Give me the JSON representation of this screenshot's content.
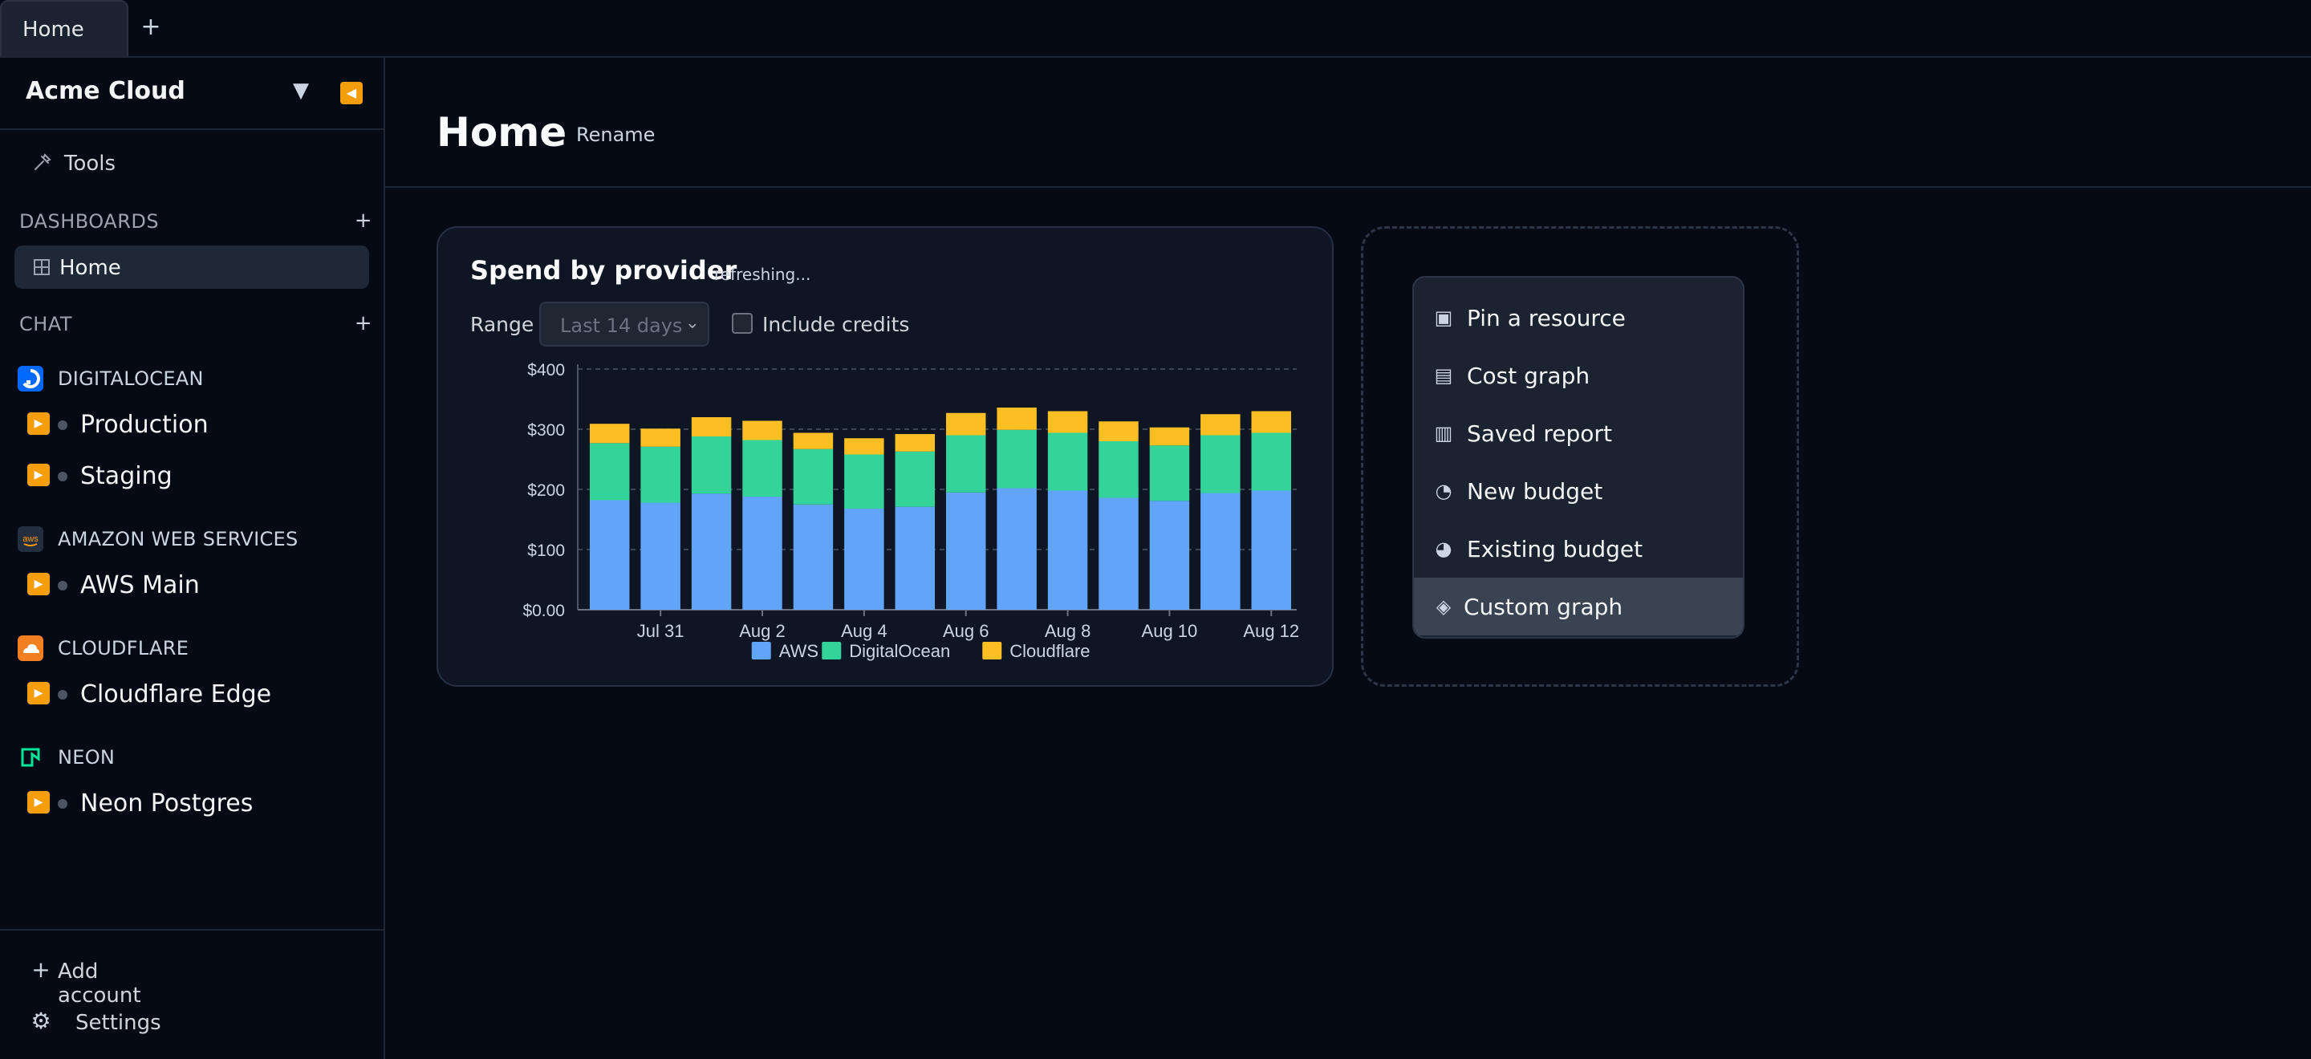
{
  "tabs": {
    "active": "Home",
    "add_label": "+"
  },
  "sidebar": {
    "org_name": "Acme Cloud",
    "dropdown_glyph": "▼",
    "collapse_glyph": "◀",
    "tools_label": "Tools",
    "dashboards_label": "DASHBOARDS",
    "dashboards_add": "+",
    "dashboard_items": [
      {
        "label": "Home",
        "icon": "grid-icon"
      }
    ],
    "chat_label": "CHAT",
    "chat_add": "+",
    "providers": [
      {
        "name": "DIGITALOCEAN",
        "icon": "digitalocean-icon",
        "color": "#0069ff",
        "accounts": [
          "Production",
          "Staging"
        ]
      },
      {
        "name": "AMAZON WEB SERVICES",
        "icon": "aws-icon",
        "color": "#232f3e",
        "accounts": [
          "AWS Main"
        ]
      },
      {
        "name": "CLOUDFLARE",
        "icon": "cloudflare-icon",
        "color": "#f38020",
        "accounts": [
          "Cloudflare Edge"
        ]
      },
      {
        "name": "NEON",
        "icon": "neon-icon",
        "color": "#00e599",
        "accounts": [
          "Neon Postgres"
        ]
      }
    ],
    "add_account": "Add account",
    "settings": "Settings"
  },
  "main": {
    "title": "Home",
    "rename": "Rename",
    "card": {
      "title": "Spend by provider",
      "status": "refreshing...",
      "range_label": "Range",
      "range_value": "Last 14 days",
      "credits_label": "Include credits"
    },
    "menu": [
      {
        "label": "Pin a resource",
        "icon": "pin-resource-icon",
        "glyph": "▣"
      },
      {
        "label": "Cost graph",
        "icon": "cost-graph-icon",
        "glyph": "▤"
      },
      {
        "label": "Saved report",
        "icon": "saved-report-icon",
        "glyph": "▥"
      },
      {
        "label": "New budget",
        "icon": "new-budget-icon",
        "glyph": "◔"
      },
      {
        "label": "Existing budget",
        "icon": "existing-budget-icon",
        "glyph": "◕"
      },
      {
        "label": "Custom graph",
        "icon": "custom-graph-icon",
        "glyph": "◈",
        "highlighted": true
      }
    ]
  },
  "chart_data": {
    "type": "bar",
    "stacked": true,
    "categories": [
      "Jul 30",
      "Jul 31",
      "Aug 1",
      "Aug 2",
      "Aug 3",
      "Aug 4",
      "Aug 5",
      "Aug 6",
      "Aug 7",
      "Aug 8",
      "Aug 9",
      "Aug 10",
      "Aug 11",
      "Aug 12"
    ],
    "x_tick_labels": [
      "Jul 31",
      "Aug 2",
      "Aug 4",
      "Aug 6",
      "Aug 8",
      "Aug 10",
      "Aug 12"
    ],
    "y_tick_labels": [
      "$0.00",
      "$100",
      "$200",
      "$300",
      "$400"
    ],
    "ylim": [
      0,
      400
    ],
    "series": [
      {
        "name": "AWS",
        "color": "#60a5fa",
        "values": [
          182,
          178,
          193,
          188,
          175,
          168,
          171,
          195,
          202,
          198,
          186,
          181,
          194,
          198
        ]
      },
      {
        "name": "DigitalOcean",
        "color": "#34d399",
        "values": [
          95,
          93,
          95,
          94,
          92,
          90,
          92,
          95,
          97,
          96,
          94,
          92,
          96,
          96
        ]
      },
      {
        "name": "Cloudflare",
        "color": "#fbbf24",
        "values": [
          32,
          30,
          32,
          32,
          27,
          27,
          29,
          37,
          37,
          36,
          33,
          30,
          35,
          36
        ]
      }
    ]
  }
}
